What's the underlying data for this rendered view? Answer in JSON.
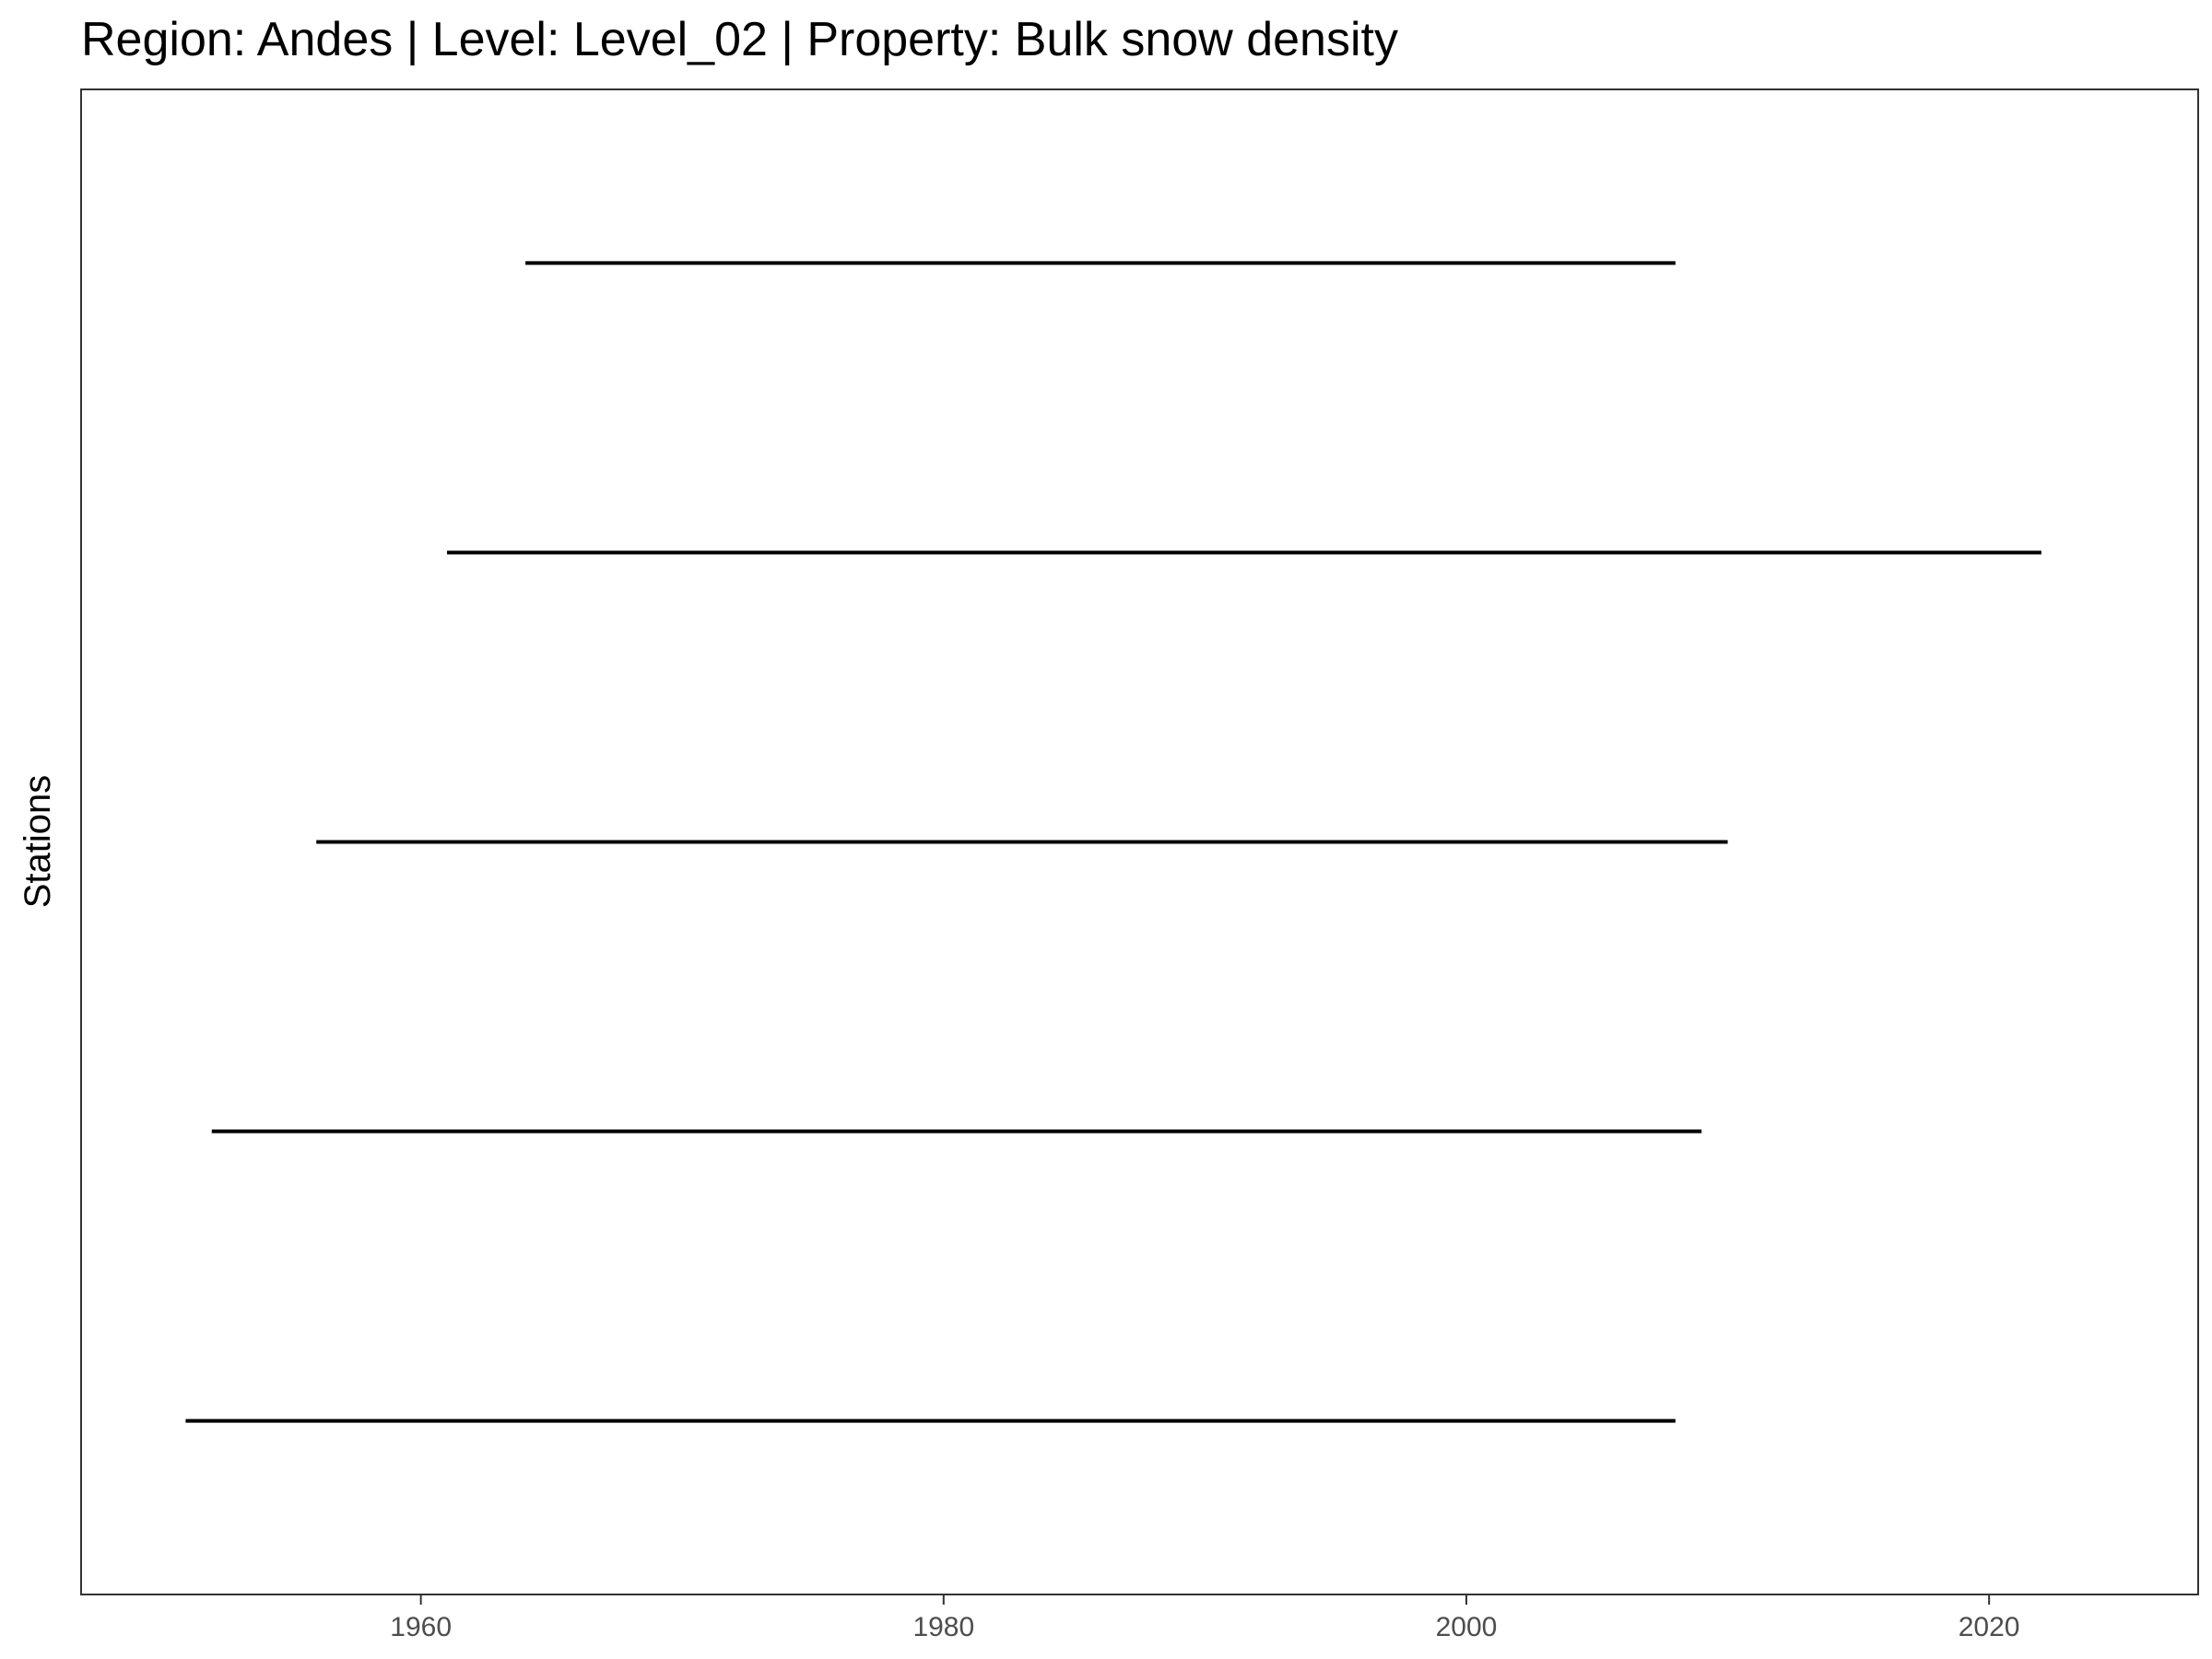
{
  "chart_data": {
    "type": "line",
    "title": "Region: Andes | Level: Level_02 | Property: Bulk snow density",
    "xlabel": "",
    "ylabel": "Stations",
    "xlim": [
      1947,
      2028
    ],
    "ylim": [
      0.4,
      5.6
    ],
    "x_ticks": [
      1960,
      1980,
      2000,
      2020
    ],
    "grid": false,
    "legend": "none",
    "y_tick_labels_shown": false,
    "series": [
      {
        "values": [
          [
            1951,
            1
          ],
          [
            2008,
            1
          ]
        ]
      },
      {
        "values": [
          [
            1952,
            2
          ],
          [
            2009,
            2
          ]
        ]
      },
      {
        "values": [
          [
            1956,
            3
          ],
          [
            2010,
            3
          ]
        ]
      },
      {
        "values": [
          [
            1961,
            4
          ],
          [
            2022,
            4
          ]
        ]
      },
      {
        "values": [
          [
            1964,
            5
          ],
          [
            2008,
            5
          ]
        ]
      }
    ],
    "colors": {
      "line": "#000000",
      "panel_border": "#333333",
      "tick": "#333333",
      "tick_label": "#4d4d4d"
    }
  }
}
